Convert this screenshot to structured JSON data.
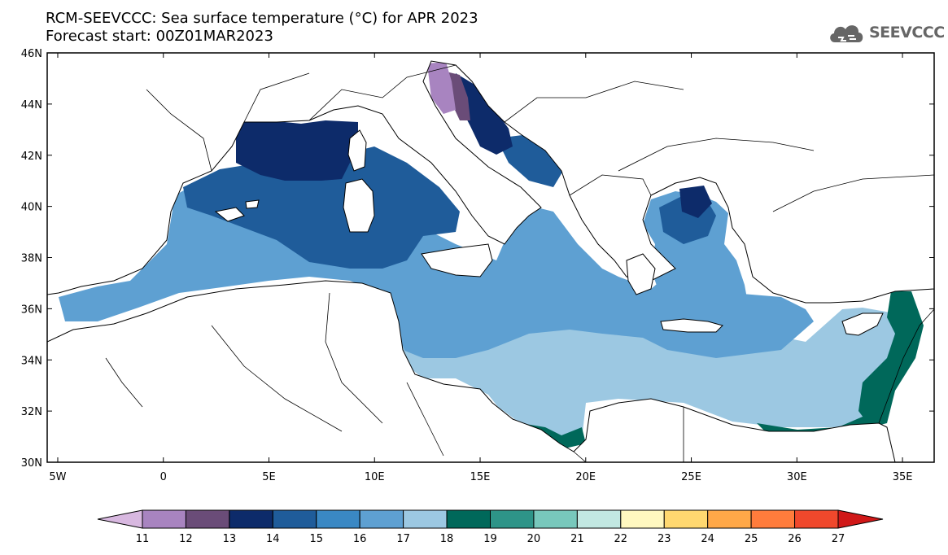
{
  "title": {
    "line1": "RCM-SEEVCCC: Sea surface temperature (°C) for APR 2023",
    "line2": "Forecast start: 00Z01MAR2023"
  },
  "logo": {
    "text": "SEEVCCC",
    "icon": "cloud-icon"
  },
  "map": {
    "lat_ticks": [
      "46N",
      "44N",
      "42N",
      "40N",
      "38N",
      "36N",
      "34N",
      "32N",
      "30N"
    ],
    "lat_values": [
      46,
      44,
      42,
      40,
      38,
      36,
      34,
      32,
      30
    ],
    "lon_ticks": [
      "5W",
      "0",
      "5E",
      "10E",
      "15E",
      "20E",
      "25E",
      "30E",
      "35E"
    ],
    "lon_values": [
      -5,
      0,
      5,
      10,
      15,
      20,
      25,
      30,
      35
    ],
    "lon_range": [
      -5.5,
      36.5
    ],
    "lat_range": [
      30,
      46
    ]
  },
  "colorbar": {
    "labels": [
      "11",
      "12",
      "13",
      "14",
      "15",
      "16",
      "17",
      "18",
      "19",
      "20",
      "21",
      "22",
      "23",
      "24",
      "25",
      "26",
      "27"
    ],
    "colors": [
      "#d8b8e0",
      "#a884c0",
      "#6a4c78",
      "#0d2b6a",
      "#1f5c9a",
      "#3a88c4",
      "#5ea0d2",
      "#9cc8e2",
      "#00685a",
      "#2e9488",
      "#78c8bc",
      "#c2e8e2",
      "#fff8c0",
      "#ffd870",
      "#ffa848",
      "#ff7c3c",
      "#f0482c",
      "#d01818"
    ]
  }
}
